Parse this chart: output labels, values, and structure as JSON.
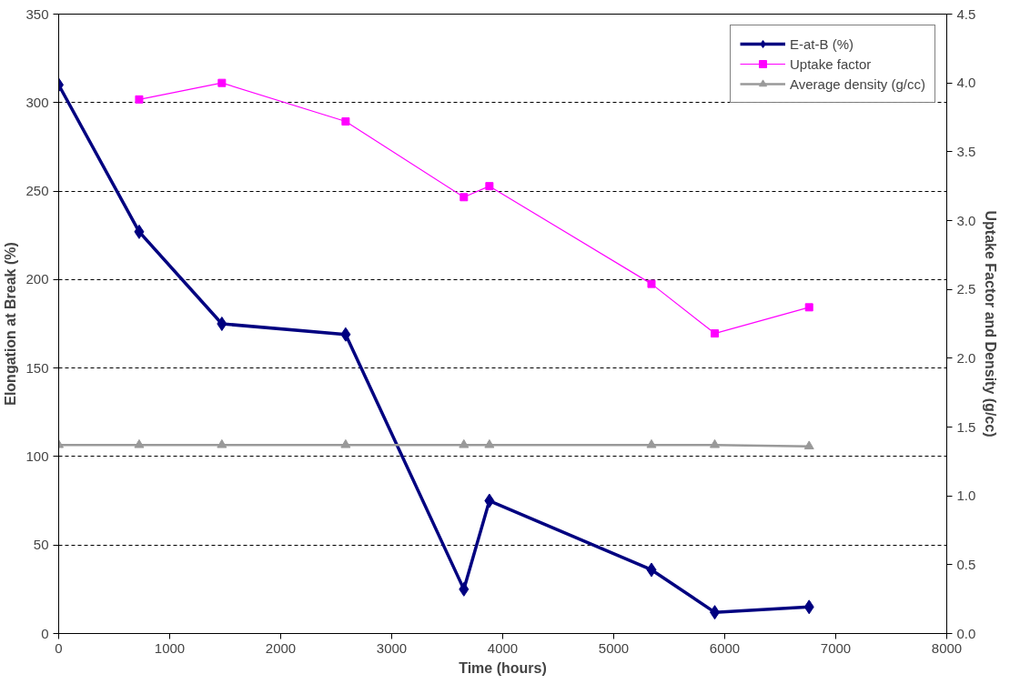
{
  "chart_data": {
    "type": "line",
    "xlabel": "Time (hours)",
    "ylabel": "Elongation at Break (%)",
    "y2label": "Uptake Factor and Density (g/cc)",
    "xlim": [
      0,
      8000
    ],
    "xticks": [
      0,
      1000,
      2000,
      3000,
      4000,
      5000,
      6000,
      7000,
      8000
    ],
    "ylim": [
      0,
      350
    ],
    "yticks": [
      0,
      50,
      100,
      150,
      200,
      250,
      300,
      350
    ],
    "y2lim": [
      0,
      4.5
    ],
    "y2ticks": [
      {
        "value": 0,
        "label": "0.0"
      },
      {
        "value": 0.5,
        "label": "0.5"
      },
      {
        "value": 1,
        "label": "1.0"
      },
      {
        "value": 1.5,
        "label": "1.5"
      },
      {
        "value": 2,
        "label": "2.0"
      },
      {
        "value": 2.5,
        "label": "2.5"
      },
      {
        "value": 3,
        "label": "3.0"
      },
      {
        "value": 3.5,
        "label": "3.5"
      },
      {
        "value": 4,
        "label": "4.0"
      },
      {
        "value": 4.5,
        "label": "4.5"
      }
    ],
    "grid": "y",
    "legend": "top right",
    "series": [
      {
        "name": "E-at-B (%)",
        "color": "#000080",
        "marker": "diamond",
        "x": [
          0,
          725,
          1470,
          2585,
          3650,
          3880,
          5340,
          5910,
          6760
        ],
        "values": [
          310,
          227,
          175,
          169,
          25,
          75,
          36,
          12,
          15
        ]
      },
      {
        "name": "Uptake factor",
        "color": "#ff00ff",
        "marker": "square",
        "axis": "y2",
        "x": [
          725,
          1470,
          2585,
          3650,
          3880,
          5340,
          5910,
          6760
        ],
        "values": [
          3.88,
          4.0,
          3.72,
          3.17,
          3.25,
          2.54,
          2.18,
          2.37
        ]
      },
      {
        "name": "Average density (g/cc)",
        "color": "#999999",
        "marker": "triangle",
        "axis": "y2",
        "x": [
          0,
          725,
          1470,
          2585,
          3650,
          3880,
          5340,
          5910,
          6760
        ],
        "values": [
          1.37,
          1.37,
          1.37,
          1.37,
          1.37,
          1.37,
          1.37,
          1.37,
          1.36
        ]
      }
    ]
  }
}
